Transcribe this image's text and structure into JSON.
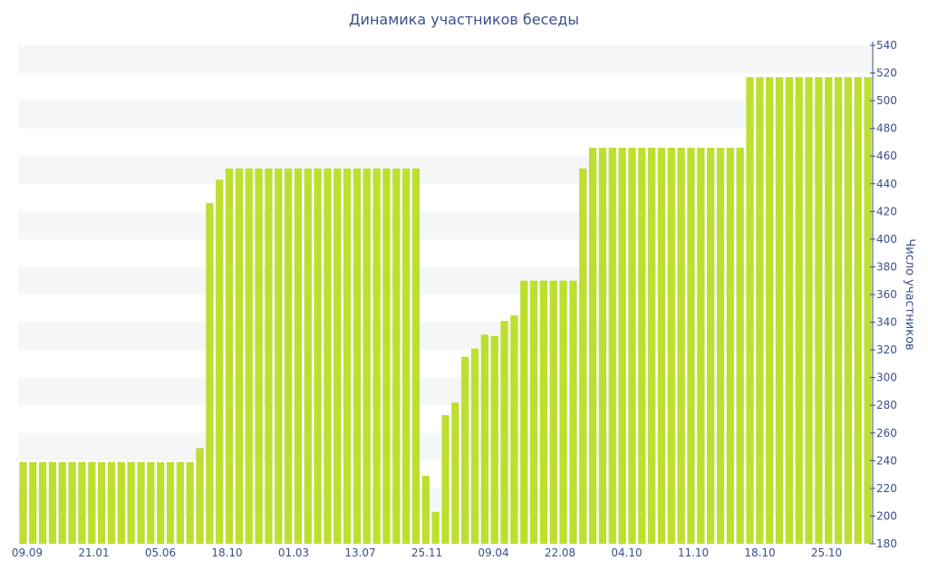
{
  "chart_data": {
    "type": "bar",
    "title": "Динамика участников беседы",
    "xlabel": "",
    "ylabel": "Число участников",
    "ylim": [
      180,
      540
    ],
    "y_axis_side": "right",
    "yticks": [
      180,
      200,
      220,
      240,
      260,
      280,
      300,
      320,
      340,
      360,
      380,
      400,
      420,
      440,
      460,
      480,
      500,
      520,
      540
    ],
    "xtick_labels": [
      "09.09",
      "21.01",
      "05.06",
      "18.10",
      "01.03",
      "13.07",
      "25.11",
      "09.04",
      "22.08",
      "04.10",
      "11.10",
      "18.10",
      "25.10"
    ],
    "grid": "horizontal alternating bands",
    "bar_color": "#bddf2f",
    "band_color": "#f6f6f6",
    "text_color": "#3a4f8e",
    "values": [
      239,
      239,
      239,
      239,
      239,
      239,
      239,
      239,
      239,
      239,
      239,
      239,
      239,
      239,
      239,
      239,
      239,
      239,
      249,
      426,
      443,
      451,
      451,
      451,
      451,
      451,
      451,
      451,
      451,
      451,
      451,
      451,
      451,
      451,
      451,
      451,
      451,
      451,
      451,
      451,
      451,
      229,
      203,
      273,
      282,
      315,
      321,
      331,
      330,
      341,
      345,
      370,
      370,
      370,
      370,
      370,
      370,
      451,
      466,
      466,
      466,
      466,
      466,
      466,
      466,
      466,
      466,
      466,
      466,
      466,
      466,
      466,
      466,
      466,
      517,
      517,
      517,
      517,
      517,
      517,
      517,
      517,
      517,
      517,
      517,
      517,
      517
    ]
  }
}
